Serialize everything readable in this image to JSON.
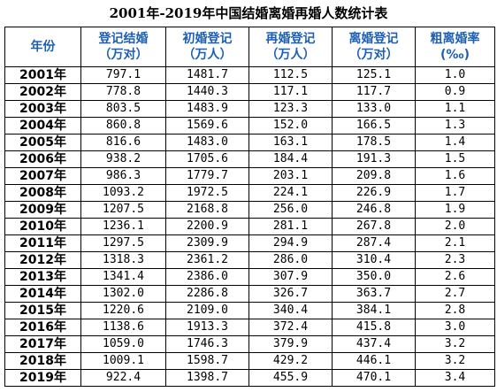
{
  "title": "2001年-2019年中国结婚离婚再婚人数统计表",
  "columns": [
    {
      "line1": "年份",
      "line2": ""
    },
    {
      "line1": "登记结婚",
      "line2": "（万对）"
    },
    {
      "line1": "初婚登记",
      "line2": "（万人）"
    },
    {
      "line1": "再婚登记",
      "line2": "（万人）"
    },
    {
      "line1": "离婚登记",
      "line2": "（万对）"
    },
    {
      "line1": "粗离婚率",
      "line2": "(‰)"
    }
  ],
  "rows": [
    [
      "2001年",
      "797.1",
      "1481.7",
      "112.5",
      "125.1",
      "1.0"
    ],
    [
      "2002年",
      "778.8",
      "1440.3",
      "117.1",
      "117.7",
      "0.9"
    ],
    [
      "2003年",
      "803.5",
      "1483.9",
      "123.3",
      "133.0",
      "1.1"
    ],
    [
      "2004年",
      "860.8",
      "1569.6",
      "152.0",
      "166.5",
      "1.3"
    ],
    [
      "2005年",
      "816.6",
      "1483.0",
      "163.1",
      "178.5",
      "1.4"
    ],
    [
      "2006年",
      "938.2",
      "1705.6",
      "184.4",
      "191.3",
      "1.5"
    ],
    [
      "2007年",
      "986.3",
      "1779.7",
      "203.1",
      "209.8",
      "1.6"
    ],
    [
      "2008年",
      "1093.2",
      "1972.5",
      "224.1",
      "226.9",
      "1.7"
    ],
    [
      "2009年",
      "1207.5",
      "2168.8",
      "256.0",
      "246.8",
      "1.9"
    ],
    [
      "2010年",
      "1236.1",
      "2200.9",
      "281.1",
      "267.8",
      "2.0"
    ],
    [
      "2011年",
      "1297.5",
      "2309.9",
      "294.9",
      "287.4",
      "2.1"
    ],
    [
      "2012年",
      "1318.3",
      "2361.2",
      "286.0",
      "310.4",
      "2.3"
    ],
    [
      "2013年",
      "1341.4",
      "2386.0",
      "307.9",
      "350.0",
      "2.6"
    ],
    [
      "2014年",
      "1302.0",
      "2286.8",
      "326.7",
      "363.7",
      "2.7"
    ],
    [
      "2015年",
      "1220.6",
      "2109.0",
      "340.4",
      "384.1",
      "2.8"
    ],
    [
      "2016年",
      "1138.6",
      "1913.3",
      "372.4",
      "415.8",
      "3.0"
    ],
    [
      "2017年",
      "1059.0",
      "1746.3",
      "379.9",
      "437.4",
      "3.2"
    ],
    [
      "2018年",
      "1009.1",
      "1598.7",
      "429.2",
      "446.1",
      "3.2"
    ],
    [
      "2019年",
      "922.4",
      "1398.7",
      "455.9",
      "470.1",
      "3.4"
    ]
  ],
  "colors": {
    "header_text": "#1d5fb3",
    "body_text": "#000000",
    "border": "#000000"
  }
}
